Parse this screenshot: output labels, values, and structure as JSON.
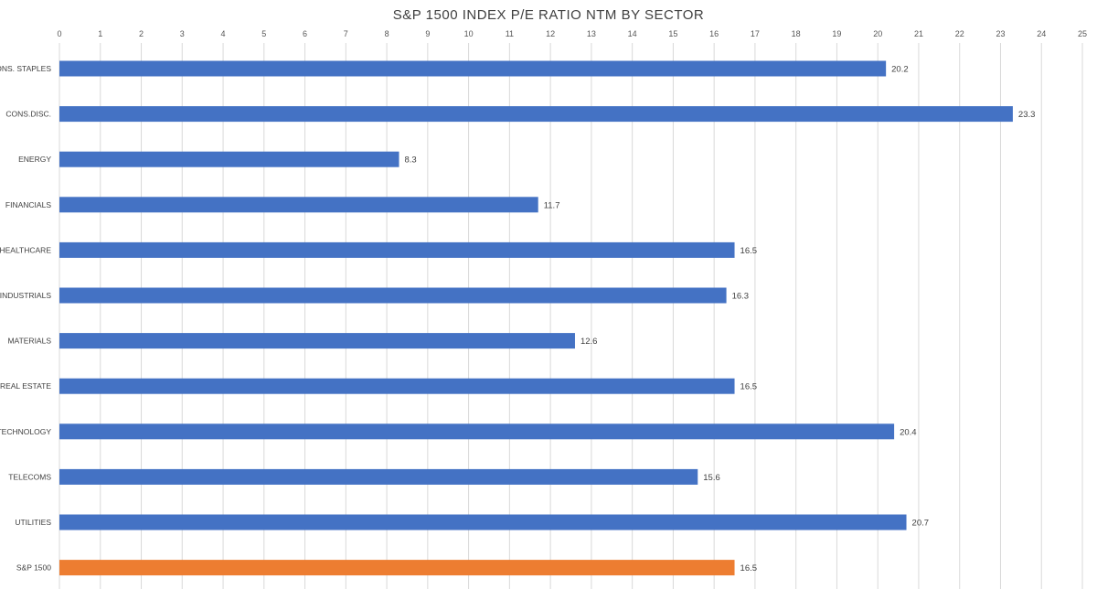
{
  "chart_data": {
    "type": "bar",
    "orientation": "horizontal",
    "title": "S&P 1500 INDEX P/E RATIO NTM BY SECTOR",
    "xlabel": "",
    "ylabel": "",
    "xlim": [
      0,
      25
    ],
    "x_ticks": [
      0,
      1,
      2,
      3,
      4,
      5,
      6,
      7,
      8,
      9,
      10,
      11,
      12,
      13,
      14,
      15,
      16,
      17,
      18,
      19,
      20,
      21,
      22,
      23,
      24,
      25
    ],
    "x_axis_position": "top",
    "grid": "vertical",
    "legend": "none",
    "categories": [
      "CONS. STAPLES",
      "CONS.DISC.",
      "ENERGY",
      "FINANCIALS",
      "HEALTHCARE",
      "INDUSTRIALS",
      "MATERIALS",
      "REAL ESTATE",
      "TECHNOLOGY",
      "TELECOMS",
      "UTILITIES",
      "S&P 1500"
    ],
    "values": [
      20.2,
      23.3,
      8.3,
      11.7,
      16.5,
      16.3,
      12.6,
      16.5,
      20.4,
      15.6,
      20.7,
      16.5
    ],
    "data_labels": [
      "20.2",
      "23.3",
      "8.3",
      "11.7",
      "16.5",
      "16.3",
      "12.6",
      "16.5",
      "20.4",
      "15.6",
      "20.7",
      "16.5"
    ],
    "colors": {
      "default": "#4472C4",
      "highlight": "#ED7D31",
      "grid": "#D9D9D9"
    },
    "highlight_categories": [
      "S&P 1500"
    ]
  }
}
